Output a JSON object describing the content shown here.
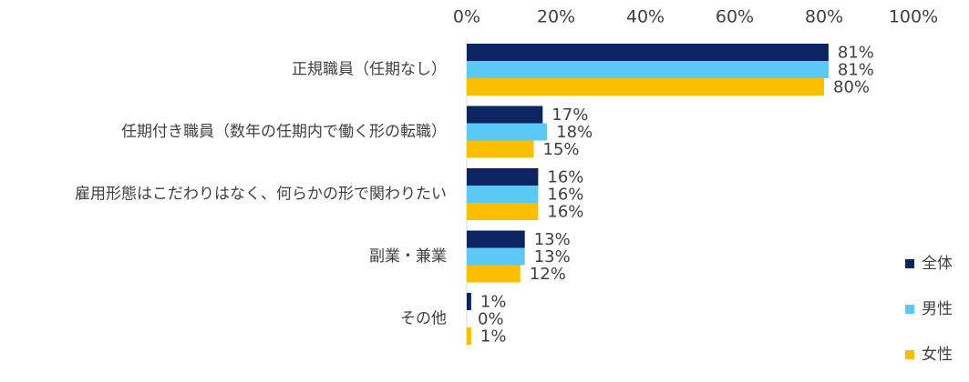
{
  "chart_data": {
    "type": "bar",
    "orientation": "horizontal",
    "title": "",
    "xlabel": "",
    "ylabel": "",
    "xlim": [
      0,
      100
    ],
    "x_ticks": [
      "0%",
      "20%",
      "40%",
      "60%",
      "80%",
      "100%"
    ],
    "x_tick_values": [
      0,
      20,
      40,
      60,
      80,
      100
    ],
    "grid": false,
    "legend_position": "bottom-right",
    "value_format": "{v}%",
    "categories": [
      "正規職員（任期なし）",
      "任期付き職員（数年の任期内で働く形の転職）",
      "雇用形態はこだわりはなく、何らかの形で関わりたい",
      "副業・兼業",
      "その他"
    ],
    "series": [
      {
        "name": "全体",
        "color": "#0c2461",
        "values": [
          81,
          17,
          16,
          13,
          1
        ]
      },
      {
        "name": "男性",
        "color": "#5bc8f5",
        "values": [
          81,
          18,
          16,
          13,
          0
        ]
      },
      {
        "name": "女性",
        "color": "#fbbf00",
        "values": [
          80,
          15,
          16,
          12,
          1
        ]
      }
    ]
  }
}
